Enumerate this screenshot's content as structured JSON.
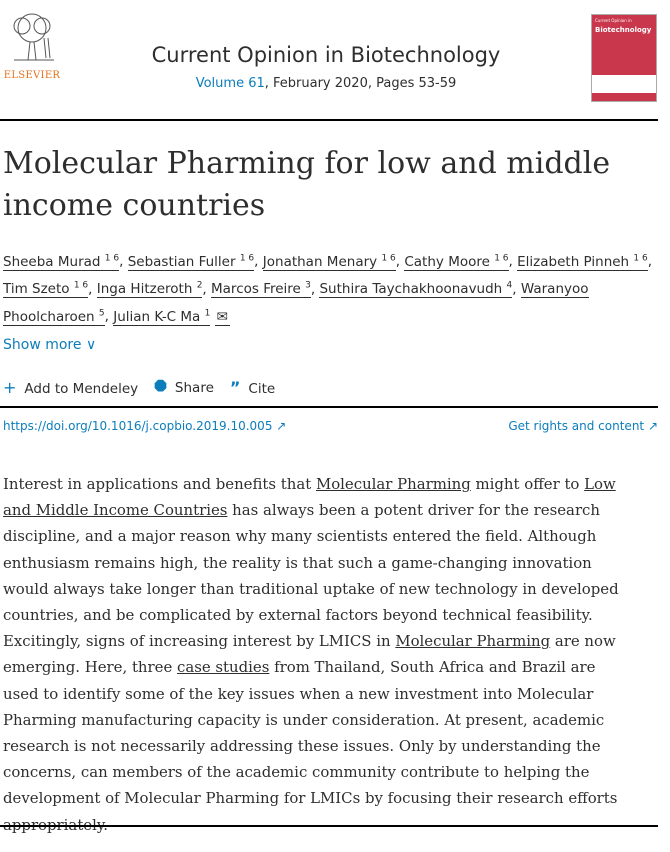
{
  "publisher": {
    "name": "ELSEVIER"
  },
  "journal": {
    "title": "Current Opinion in Biotechnology",
    "volume": "Volume 61",
    "rest": ", February 2020, Pages 53-59",
    "cover_title": "Biotechnology",
    "cover_sub": "Current Opinion in"
  },
  "article": {
    "title": "Molecular Pharming for low and middle income countries"
  },
  "authors": [
    {
      "name": "Sheeba Murad",
      "sup": "1 6"
    },
    {
      "name": "Sebastian Fuller",
      "sup": "1 6"
    },
    {
      "name": "Jonathan Menary",
      "sup": "1 6"
    },
    {
      "name": "Cathy Moore",
      "sup": "1 6"
    },
    {
      "name": "Elizabeth Pinneh",
      "sup": "1 6"
    },
    {
      "name": "Tim Szeto",
      "sup": "1 6"
    },
    {
      "name": "Inga Hitzeroth",
      "sup": "2"
    },
    {
      "name": "Marcos Freire",
      "sup": "3"
    },
    {
      "name": "Suthira Taychakhoonavudh",
      "sup": "4"
    },
    {
      "name": "Waranyoo Phoolcharoen",
      "sup": "5"
    },
    {
      "name": "Julian K-C Ma",
      "sup": "1"
    }
  ],
  "show_more": "Show more",
  "actions": {
    "mendeley": "Add to Mendeley",
    "share": "Share",
    "cite": "Cite"
  },
  "doi": "https://doi.org/10.1016/j.copbio.2019.10.005 ↗",
  "rights": "Get rights and content ↗",
  "abstract": [
    {
      "t": "Interest in applications and benefits that "
    },
    {
      "t": "Molecular Pharming",
      "link": true
    },
    {
      "t": " might offer to "
    },
    {
      "t": "Low and Middle Income Countries",
      "link": true
    },
    {
      "t": " has always been a potent driver for the research discipline, and a major reason why many scientists entered the field. Although enthusiasm remains high, the reality is that such a game-changing innovation would always take longer than traditional uptake of new technology in developed countries, and be complicated by external factors beyond technical feasibility. Excitingly, signs of increasing interest by LMICS in "
    },
    {
      "t": "Molecular Pharming",
      "link": true
    },
    {
      "t": " are now emerging. Here, three "
    },
    {
      "t": "case studies",
      "link": true
    },
    {
      "t": " from Thailand, South Africa and Brazil are used to identify some of the key issues when a new investment into Molecular Pharming manufacturing capacity is under consideration. At present, academic research is not necessarily addressing these issues. Only by understanding the concerns, can members of the academic community contribute to helping the development of Molecular Pharming for LMICs by focusing their research efforts appropriately."
    }
  ]
}
